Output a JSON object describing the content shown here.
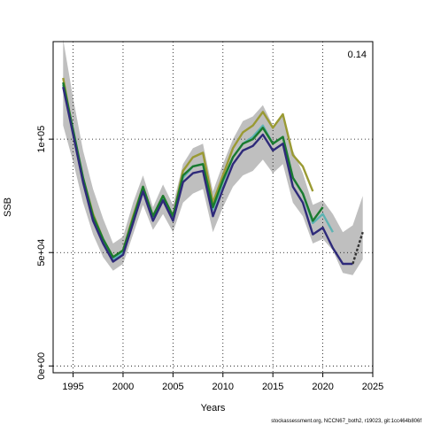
{
  "chart_data": {
    "type": "line",
    "xlabel": "Years",
    "ylabel": "SSB",
    "corner_label": "0.14",
    "caption": "stockassessment.org, NCCN67_both2, r19023, git:1cc464b806f",
    "xlim": [
      1993,
      2025
    ],
    "ylim": [
      -3000,
      143000
    ],
    "x_ticks": [
      1995,
      2000,
      2005,
      2010,
      2015,
      2020,
      2025
    ],
    "y_ticks": [
      {
        "value": 0,
        "label": "0e+00"
      },
      {
        "value": 50000,
        "label": "5e+04"
      },
      {
        "value": 100000,
        "label": "1e+05"
      }
    ],
    "grid": true,
    "band": {
      "x": [
        1994,
        1995,
        1996,
        1997,
        1998,
        1999,
        2000,
        2001,
        2002,
        2003,
        2004,
        2005,
        2006,
        2007,
        2008,
        2009,
        2010,
        2011,
        2012,
        2013,
        2014,
        2015,
        2016,
        2017,
        2018,
        2019,
        2020,
        2021,
        2022,
        2023,
        2024
      ],
      "upper": [
        144000,
        118000,
        95000,
        78000,
        65000,
        54000,
        57000,
        72000,
        84000,
        70000,
        80000,
        71000,
        89000,
        96000,
        98000,
        77000,
        89000,
        100000,
        108000,
        110000,
        115000,
        106000,
        111000,
        95000,
        85000,
        71000,
        73000,
        67000,
        59000,
        62000,
        75000
      ],
      "lower": [
        106000,
        90000,
        72000,
        58000,
        48000,
        42000,
        45000,
        58000,
        71000,
        60000,
        67000,
        59000,
        72000,
        76000,
        78000,
        59000,
        70000,
        79000,
        84000,
        86000,
        91000,
        85000,
        89000,
        72000,
        66000,
        54000,
        56000,
        51000,
        41000,
        40000,
        47000
      ],
      "color": "#bfbfbf"
    },
    "series": [
      {
        "color": "#9a9a33",
        "x": [
          1994,
          1995,
          1996,
          1997,
          1998,
          1999,
          2000,
          2001,
          2002,
          2003,
          2004,
          2005,
          2006,
          2007,
          2008,
          2009,
          2010,
          2011,
          2012,
          2013,
          2014,
          2015,
          2016,
          2017,
          2018,
          2019
        ],
        "values": [
          127000,
          103000,
          83000,
          67000,
          56000,
          48000,
          51000,
          66000,
          79000,
          66000,
          75000,
          66000,
          86000,
          92000,
          94000,
          72000,
          84000,
          96000,
          103000,
          106000,
          112000,
          105000,
          111000,
          93000,
          88000,
          77000
        ]
      },
      {
        "color": "#5db3b3",
        "x": [
          1994,
          1995,
          1996,
          1997,
          1998,
          1999,
          2000,
          2001,
          2002,
          2003,
          2004,
          2005,
          2006,
          2007,
          2008,
          2009,
          2010,
          2011,
          2012,
          2013,
          2014,
          2015,
          2016,
          2017,
          2018,
          2019,
          2020,
          2021
        ],
        "values": [
          124000,
          103000,
          82000,
          65000,
          55000,
          47000,
          50000,
          64000,
          78000,
          65000,
          74000,
          65000,
          83000,
          88000,
          89000,
          69000,
          81000,
          92000,
          98000,
          101000,
          106000,
          98000,
          101000,
          83000,
          76000,
          63000,
          67000,
          59000
        ]
      },
      {
        "color": "#1a7a2e",
        "x": [
          1994,
          1995,
          1996,
          1997,
          1998,
          1999,
          2000,
          2001,
          2002,
          2003,
          2004,
          2005,
          2006,
          2007,
          2008,
          2009,
          2010,
          2011,
          2012,
          2013,
          2014,
          2015,
          2016,
          2017,
          2018,
          2019,
          2020
        ],
        "values": [
          125000,
          104000,
          83000,
          66000,
          56000,
          48000,
          51000,
          65000,
          79000,
          66000,
          75000,
          66000,
          84000,
          88000,
          89000,
          70000,
          82000,
          92000,
          98000,
          100000,
          105000,
          98000,
          101000,
          83000,
          76000,
          64000,
          70000
        ]
      },
      {
        "color": "#2e2a7a",
        "x": [
          1994,
          1995,
          1996,
          1997,
          1998,
          1999,
          2000,
          2001,
          2002,
          2003,
          2004,
          2005,
          2006,
          2007,
          2008,
          2009,
          2010,
          2011,
          2012,
          2013,
          2014,
          2015,
          2016,
          2017,
          2018,
          2019,
          2020,
          2021,
          2022,
          2023
        ],
        "values": [
          123000,
          102000,
          81000,
          64000,
          54000,
          46000,
          49000,
          63000,
          77000,
          64000,
          73000,
          64000,
          81000,
          85000,
          86000,
          66000,
          78000,
          89000,
          95000,
          97000,
          102000,
          95000,
          98000,
          79000,
          72000,
          58000,
          61000,
          52000,
          45000,
          45000
        ]
      },
      {
        "color": "#333333",
        "dashed": true,
        "x": [
          2023,
          2024
        ],
        "values": [
          45000,
          59000
        ]
      }
    ]
  }
}
